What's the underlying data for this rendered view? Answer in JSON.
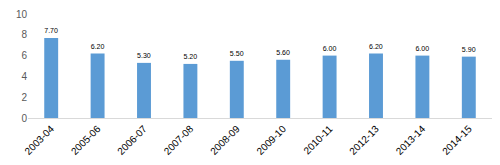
{
  "chart_data": {
    "type": "bar",
    "categories": [
      "2003-04",
      "2005-06",
      "2006-07",
      "2007-08",
      "2008-09",
      "2009-10",
      "2010-11",
      "2012-13",
      "2013-14",
      "2014-15"
    ],
    "values": [
      7.7,
      6.2,
      5.3,
      5.2,
      5.5,
      5.6,
      6.0,
      6.2,
      6.0,
      5.9
    ],
    "value_labels": [
      "7.70",
      "6.20",
      "5.30",
      "5.20",
      "5.50",
      "5.60",
      "6.00",
      "6.20",
      "6.00",
      "5.90"
    ],
    "color": "#5b9bd5",
    "ylim": [
      0,
      10
    ],
    "yticks": [
      0,
      2,
      4,
      6,
      8,
      10
    ],
    "grid": false,
    "data_labels": true
  }
}
